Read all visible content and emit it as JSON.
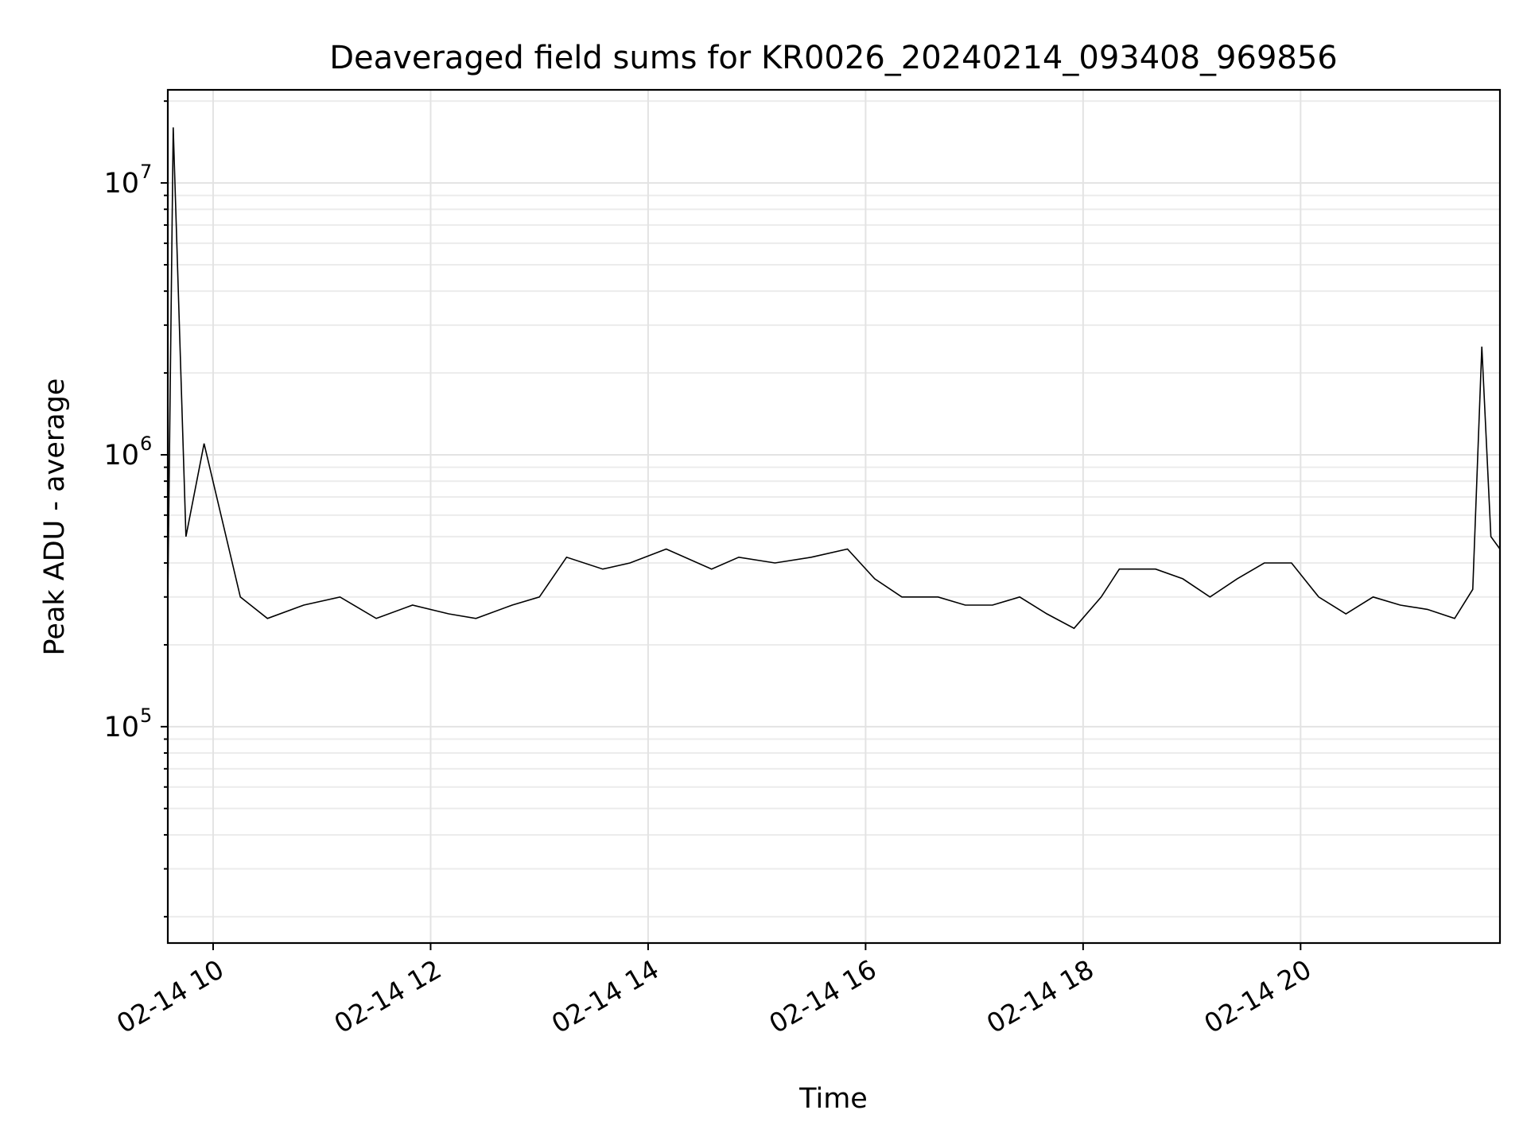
{
  "chart_data": {
    "type": "line",
    "title": "Deaveraged field sums for KR0026_20240214_093408_969856",
    "xlabel": "Time",
    "ylabel": "Peak ADU - average",
    "y_scale": "log",
    "grid": true,
    "line_color": "#000000",
    "x_range": [
      "2024-02-14T09:35",
      "2024-02-14T21:50"
    ],
    "y_range": [
      16000,
      22000000
    ],
    "x_ticks": [
      {
        "value": "2024-02-14T10:00",
        "label": "02-14 10"
      },
      {
        "value": "2024-02-14T12:00",
        "label": "02-14 12"
      },
      {
        "value": "2024-02-14T14:00",
        "label": "02-14 14"
      },
      {
        "value": "2024-02-14T16:00",
        "label": "02-14 16"
      },
      {
        "value": "2024-02-14T18:00",
        "label": "02-14 18"
      },
      {
        "value": "2024-02-14T20:00",
        "label": "02-14 20"
      }
    ],
    "y_ticks": [
      {
        "value": 100000,
        "base": "10",
        "exp": "5"
      },
      {
        "value": 1000000,
        "base": "10",
        "exp": "6"
      },
      {
        "value": 10000000,
        "base": "10",
        "exp": "7"
      }
    ],
    "series": [
      {
        "x": [
          "2024-02-14T09:35",
          "2024-02-14T09:38",
          "2024-02-14T09:45",
          "2024-02-14T09:55",
          "2024-02-14T10:15",
          "2024-02-14T10:30",
          "2024-02-14T10:50",
          "2024-02-14T11:10",
          "2024-02-14T11:30",
          "2024-02-14T11:50",
          "2024-02-14T12:10",
          "2024-02-14T12:25",
          "2024-02-14T12:45",
          "2024-02-14T13:00",
          "2024-02-14T13:15",
          "2024-02-14T13:35",
          "2024-02-14T13:50",
          "2024-02-14T14:10",
          "2024-02-14T14:35",
          "2024-02-14T14:50",
          "2024-02-14T15:10",
          "2024-02-14T15:30",
          "2024-02-14T15:50",
          "2024-02-14T16:05",
          "2024-02-14T16:20",
          "2024-02-14T16:40",
          "2024-02-14T16:55",
          "2024-02-14T17:10",
          "2024-02-14T17:25",
          "2024-02-14T17:40",
          "2024-02-14T17:55",
          "2024-02-14T18:10",
          "2024-02-14T18:20",
          "2024-02-14T18:40",
          "2024-02-14T18:55",
          "2024-02-14T19:10",
          "2024-02-14T19:25",
          "2024-02-14T19:40",
          "2024-02-14T19:55",
          "2024-02-14T20:10",
          "2024-02-14T20:25",
          "2024-02-14T20:40",
          "2024-02-14T20:55",
          "2024-02-14T21:10",
          "2024-02-14T21:25",
          "2024-02-14T21:35",
          "2024-02-14T21:40",
          "2024-02-14T21:45",
          "2024-02-14T21:50"
        ],
        "y": [
          300000,
          16000000,
          500000,
          1100000,
          300000,
          250000,
          280000,
          300000,
          250000,
          280000,
          260000,
          250000,
          280000,
          300000,
          420000,
          380000,
          400000,
          450000,
          380000,
          420000,
          400000,
          420000,
          450000,
          350000,
          300000,
          300000,
          280000,
          280000,
          300000,
          260000,
          230000,
          300000,
          380000,
          380000,
          350000,
          300000,
          350000,
          400000,
          400000,
          300000,
          260000,
          300000,
          280000,
          270000,
          250000,
          320000,
          2500000,
          500000,
          450000
        ]
      }
    ]
  }
}
